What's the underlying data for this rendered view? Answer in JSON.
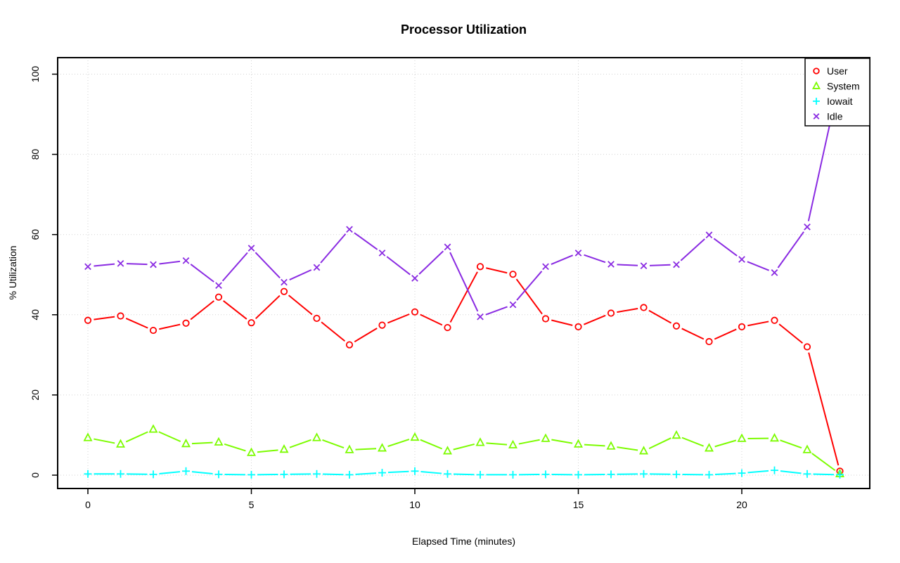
{
  "figure": {
    "title": "Processor Utilization",
    "xlabel": "Elapsed Time (minutes)",
    "ylabel": "% Utilization"
  },
  "colors": {
    "user": "#ff0000",
    "system": "#7cfc00",
    "iowait": "#00ffff",
    "idle": "#8a2be2",
    "grid": "#d3d3d3",
    "axis": "#000000",
    "background": "#ffffff"
  },
  "chart_data": {
    "type": "line",
    "title": "Processor Utilization",
    "xlabel": "Elapsed Time (minutes)",
    "ylabel": "% Utilization",
    "grid": "dotted",
    "legend_position": "top-right",
    "xlim": [
      -0.9,
      23.9
    ],
    "ylim": [
      -3.3,
      104.1
    ],
    "xticks": [
      0,
      5,
      10,
      15,
      20
    ],
    "yticks": [
      0,
      20,
      40,
      60,
      80,
      100
    ],
    "x": [
      0,
      1,
      2,
      3,
      4,
      5,
      6,
      7,
      8,
      9,
      10,
      11,
      12,
      13,
      14,
      15,
      16,
      17,
      18,
      19,
      20,
      21,
      22,
      23
    ],
    "series": [
      {
        "name": "User",
        "color": "#ff0000",
        "marker": "circle",
        "values": [
          38.6,
          39.7,
          36.1,
          37.9,
          44.4,
          38.0,
          45.8,
          39.1,
          32.5,
          37.4,
          40.7,
          36.8,
          52.0,
          50.1,
          39.0,
          37.0,
          40.4,
          41.8,
          37.2,
          33.3,
          37.0,
          38.6,
          32.0,
          1.0
        ]
      },
      {
        "name": "System",
        "color": "#7cfc00",
        "marker": "triangle",
        "values": [
          9.3,
          7.7,
          11.4,
          7.8,
          8.2,
          5.6,
          6.4,
          9.3,
          6.3,
          6.7,
          9.4,
          6.0,
          8.1,
          7.5,
          9.1,
          7.7,
          7.2,
          6.0,
          9.9,
          6.7,
          9.1,
          9.2,
          6.3,
          0.3
        ]
      },
      {
        "name": "Iowait",
        "color": "#00ffff",
        "marker": "plus",
        "values": [
          0.3,
          0.3,
          0.2,
          1.0,
          0.2,
          0.1,
          0.2,
          0.3,
          0.1,
          0.6,
          1.0,
          0.3,
          0.1,
          0.1,
          0.2,
          0.1,
          0.2,
          0.3,
          0.2,
          0.1,
          0.5,
          1.2,
          0.3,
          0.1
        ]
      },
      {
        "name": "Idle",
        "color": "#8a2be2",
        "marker": "x",
        "values": [
          52.0,
          52.8,
          52.5,
          53.5,
          47.3,
          56.6,
          48.1,
          51.8,
          61.3,
          55.4,
          49.1,
          56.9,
          39.5,
          42.5,
          52.0,
          55.4,
          52.6,
          52.2,
          52.5,
          59.9,
          53.8,
          50.5,
          61.9,
          98.9
        ]
      }
    ]
  }
}
